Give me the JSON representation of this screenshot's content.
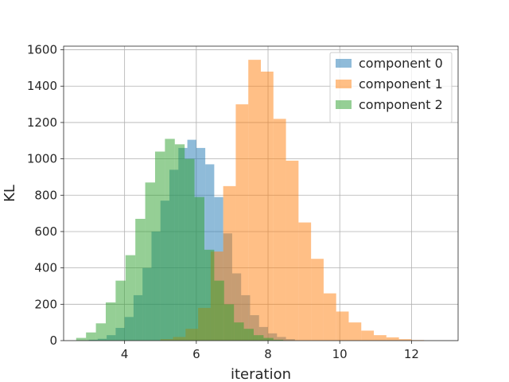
{
  "chart_data": {
    "type": "bar",
    "title": "",
    "xlabel": "iteration",
    "ylabel": "KL",
    "xlim": [
      2.3,
      13.3
    ],
    "ylim": [
      0,
      1620
    ],
    "xticks": [
      4,
      6,
      8,
      10,
      12
    ],
    "yticks": [
      0,
      200,
      400,
      600,
      800,
      1000,
      1200,
      1400,
      1600
    ],
    "grid": true,
    "legend_position": "top-right",
    "series": [
      {
        "name": "component 0",
        "color": "#1f77b4",
        "opacity": 0.5,
        "bins": [
          {
            "x0": 3.0,
            "x1": 3.25,
            "count": 5
          },
          {
            "x0": 3.25,
            "x1": 3.5,
            "count": 10
          },
          {
            "x0": 3.5,
            "x1": 3.75,
            "count": 30
          },
          {
            "x0": 3.75,
            "x1": 4.0,
            "count": 70
          },
          {
            "x0": 4.0,
            "x1": 4.25,
            "count": 130
          },
          {
            "x0": 4.25,
            "x1": 4.5,
            "count": 250
          },
          {
            "x0": 4.5,
            "x1": 4.75,
            "count": 400
          },
          {
            "x0": 4.75,
            "x1": 5.0,
            "count": 600
          },
          {
            "x0": 5.0,
            "x1": 5.25,
            "count": 770
          },
          {
            "x0": 5.25,
            "x1": 5.5,
            "count": 940
          },
          {
            "x0": 5.5,
            "x1": 5.75,
            "count": 1060
          },
          {
            "x0": 5.75,
            "x1": 6.0,
            "count": 1105
          },
          {
            "x0": 6.0,
            "x1": 6.25,
            "count": 1060
          },
          {
            "x0": 6.25,
            "x1": 6.5,
            "count": 970
          },
          {
            "x0": 6.5,
            "x1": 6.75,
            "count": 790
          },
          {
            "x0": 6.75,
            "x1": 7.0,
            "count": 590
          },
          {
            "x0": 7.0,
            "x1": 7.25,
            "count": 370
          },
          {
            "x0": 7.25,
            "x1": 7.5,
            "count": 250
          },
          {
            "x0": 7.5,
            "x1": 7.75,
            "count": 140
          },
          {
            "x0": 7.75,
            "x1": 8.0,
            "count": 75
          },
          {
            "x0": 8.0,
            "x1": 8.25,
            "count": 40
          },
          {
            "x0": 8.25,
            "x1": 8.5,
            "count": 20
          },
          {
            "x0": 8.5,
            "x1": 8.75,
            "count": 8
          }
        ]
      },
      {
        "name": "component 1",
        "color": "#ff7f0e",
        "opacity": 0.5,
        "bins": [
          {
            "x0": 5.0,
            "x1": 5.35,
            "count": 8
          },
          {
            "x0": 5.35,
            "x1": 5.7,
            "count": 20
          },
          {
            "x0": 5.7,
            "x1": 6.05,
            "count": 65
          },
          {
            "x0": 6.05,
            "x1": 6.4,
            "count": 180
          },
          {
            "x0": 6.4,
            "x1": 6.75,
            "count": 490
          },
          {
            "x0": 6.75,
            "x1": 7.1,
            "count": 850
          },
          {
            "x0": 7.1,
            "x1": 7.45,
            "count": 1300
          },
          {
            "x0": 7.45,
            "x1": 7.8,
            "count": 1545
          },
          {
            "x0": 7.8,
            "x1": 8.15,
            "count": 1480
          },
          {
            "x0": 8.15,
            "x1": 8.5,
            "count": 1220
          },
          {
            "x0": 8.5,
            "x1": 8.85,
            "count": 990
          },
          {
            "x0": 8.85,
            "x1": 9.2,
            "count": 650
          },
          {
            "x0": 9.2,
            "x1": 9.55,
            "count": 450
          },
          {
            "x0": 9.55,
            "x1": 9.9,
            "count": 260
          },
          {
            "x0": 9.9,
            "x1": 10.25,
            "count": 160
          },
          {
            "x0": 10.25,
            "x1": 10.6,
            "count": 100
          },
          {
            "x0": 10.6,
            "x1": 10.95,
            "count": 55
          },
          {
            "x0": 10.95,
            "x1": 11.3,
            "count": 30
          },
          {
            "x0": 11.3,
            "x1": 11.65,
            "count": 18
          },
          {
            "x0": 11.65,
            "x1": 12.0,
            "count": 8
          },
          {
            "x0": 12.0,
            "x1": 12.35,
            "count": 3
          }
        ]
      },
      {
        "name": "component 2",
        "color": "#2ca02c",
        "opacity": 0.5,
        "bins": [
          {
            "x0": 2.65,
            "x1": 2.925,
            "count": 15
          },
          {
            "x0": 2.925,
            "x1": 3.2,
            "count": 45
          },
          {
            "x0": 3.2,
            "x1": 3.475,
            "count": 95
          },
          {
            "x0": 3.475,
            "x1": 3.75,
            "count": 210
          },
          {
            "x0": 3.75,
            "x1": 4.025,
            "count": 330
          },
          {
            "x0": 4.025,
            "x1": 4.3,
            "count": 470
          },
          {
            "x0": 4.3,
            "x1": 4.575,
            "count": 670
          },
          {
            "x0": 4.575,
            "x1": 4.85,
            "count": 870
          },
          {
            "x0": 4.85,
            "x1": 5.125,
            "count": 1040
          },
          {
            "x0": 5.125,
            "x1": 5.4,
            "count": 1110
          },
          {
            "x0": 5.4,
            "x1": 5.675,
            "count": 1080
          },
          {
            "x0": 5.675,
            "x1": 5.95,
            "count": 1000
          },
          {
            "x0": 5.95,
            "x1": 6.225,
            "count": 790
          },
          {
            "x0": 6.225,
            "x1": 6.5,
            "count": 500
          },
          {
            "x0": 6.5,
            "x1": 6.775,
            "count": 330
          },
          {
            "x0": 6.775,
            "x1": 7.05,
            "count": 200
          },
          {
            "x0": 7.05,
            "x1": 7.325,
            "count": 100
          },
          {
            "x0": 7.325,
            "x1": 7.6,
            "count": 65
          },
          {
            "x0": 7.6,
            "x1": 7.875,
            "count": 30
          },
          {
            "x0": 7.875,
            "x1": 8.15,
            "count": 15
          },
          {
            "x0": 8.15,
            "x1": 8.425,
            "count": 5
          }
        ]
      }
    ]
  }
}
